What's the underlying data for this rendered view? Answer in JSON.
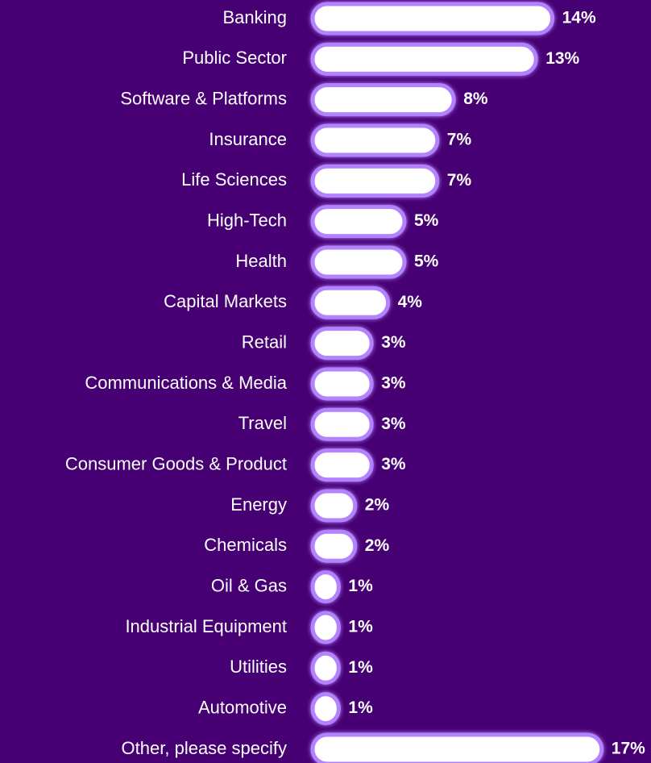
{
  "chart_data": {
    "type": "bar",
    "orientation": "horizontal",
    "categories": [
      "Banking",
      "Public Sector",
      "Software & Platforms",
      "Insurance",
      "Life Sciences",
      "High-Tech",
      "Health",
      "Capital Markets",
      "Retail",
      "Communications & Media",
      "Travel",
      "Consumer Goods & Product",
      "Energy",
      "Chemicals",
      "Oil & Gas",
      "Industrial Equipment",
      "Utilities",
      "Automotive",
      "Other, please specify"
    ],
    "values": [
      14,
      13,
      8,
      7,
      7,
      5,
      5,
      4,
      3,
      3,
      3,
      3,
      2,
      2,
      1,
      1,
      1,
      1,
      17
    ],
    "value_labels": [
      "14%",
      "13%",
      "8%",
      "7%",
      "7%",
      "5%",
      "5%",
      "4%",
      "3%",
      "3%",
      "3%",
      "3%",
      "2%",
      "2%",
      "1%",
      "1%",
      "1%",
      "1%",
      "17%"
    ],
    "color": "#ffffff"
  }
}
